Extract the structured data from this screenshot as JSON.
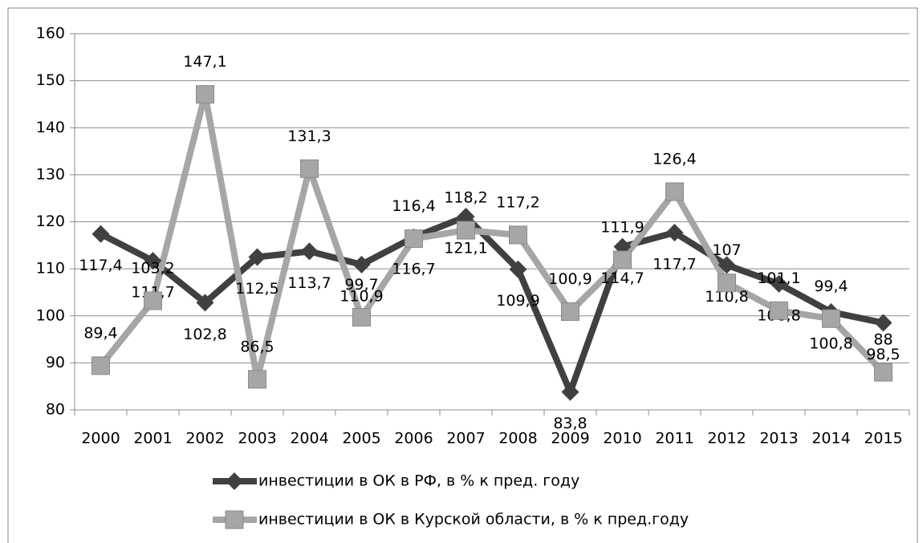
{
  "chart_data": {
    "type": "line",
    "categories": [
      "2000",
      "2001",
      "2002",
      "2003",
      "2004",
      "2005",
      "2006",
      "2007",
      "2008",
      "2009",
      "2010",
      "2011",
      "2012",
      "2013",
      "2014",
      "2015"
    ],
    "series": [
      {
        "name": "инвестиции в ОК в РФ, в % к пред. году",
        "color": "#404040",
        "marker": "diamond",
        "values": [
          117.4,
          111.7,
          102.8,
          112.5,
          113.7,
          110.9,
          116.7,
          121.1,
          109.9,
          83.8,
          114.7,
          117.7,
          110.8,
          106.8,
          100.8,
          98.5
        ],
        "value_labels": [
          "117,4",
          "111,7",
          "102,8",
          "112,5",
          "113,7",
          "110,9",
          "116,7",
          "121,1",
          "109,9",
          "83,8",
          "114,7",
          "117,7",
          "110,8",
          "106,8",
          "100,8",
          "98,5"
        ]
      },
      {
        "name": "инвестиции в ОК в Курской области, в % к пред.году",
        "color": "#a6a6a6",
        "marker": "square",
        "values": [
          89.4,
          103.2,
          147.1,
          86.5,
          131.3,
          99.7,
          116.4,
          118.2,
          117.2,
          100.9,
          111.9,
          126.4,
          107,
          101.1,
          99.4,
          88
        ],
        "value_labels": [
          "89,4",
          "103,2",
          "147,1",
          "86,5",
          "131,3",
          "99,7",
          "116,4",
          "118,2",
          "117,2",
          "100,9",
          "111,9",
          "126,4",
          "107",
          "101,1",
          "99,4",
          "88"
        ]
      }
    ],
    "ylim": [
      80,
      160
    ],
    "yticks": [
      80,
      90,
      100,
      110,
      120,
      130,
      140,
      150,
      160
    ],
    "grid": true,
    "legend": "bottom"
  }
}
